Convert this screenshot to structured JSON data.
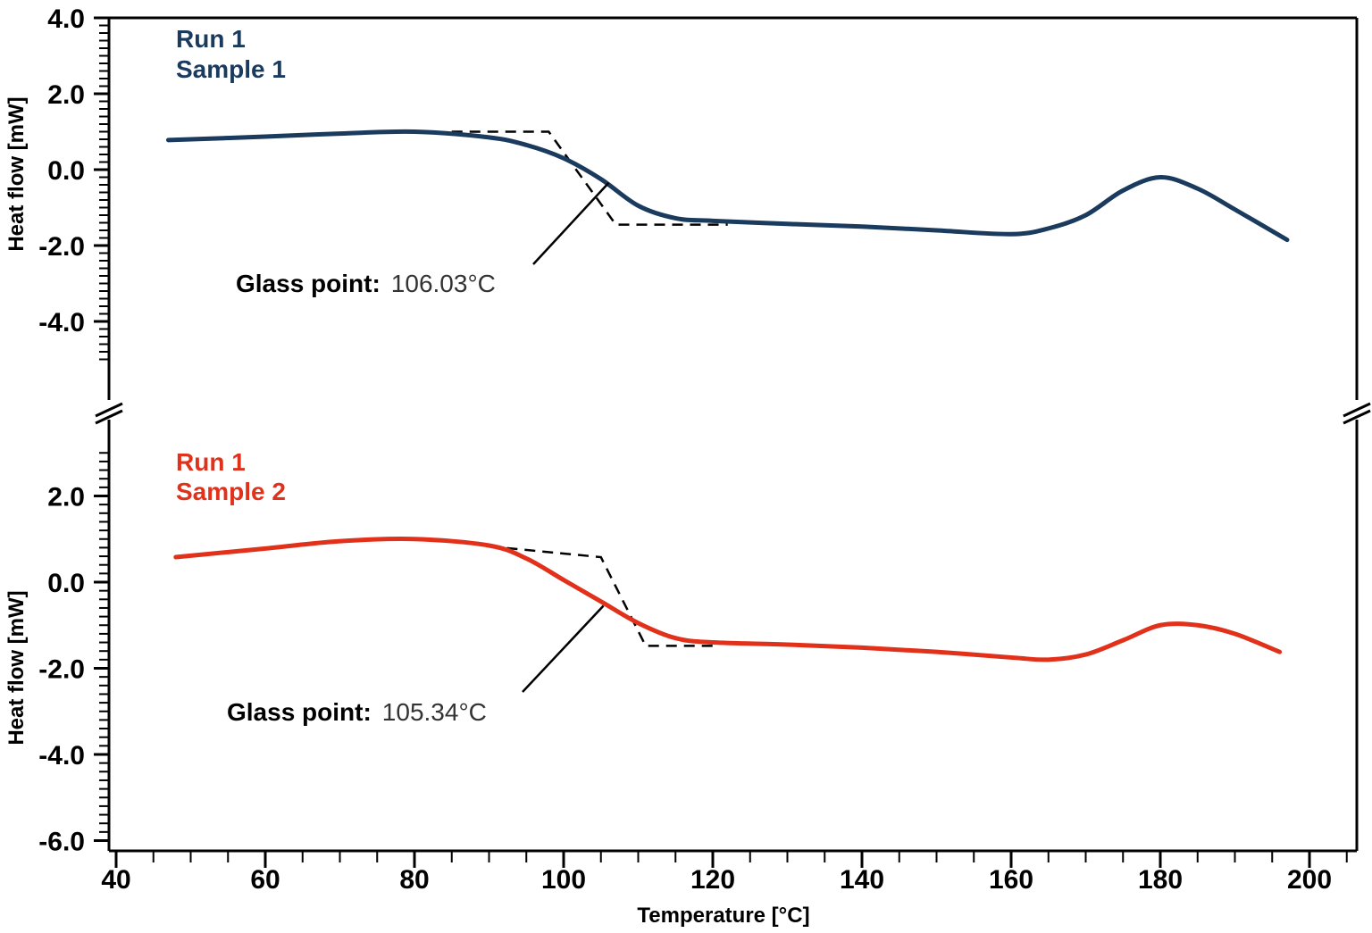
{
  "chart_data": [
    {
      "type": "line",
      "panel": "top",
      "xlabel": "Temperature [°C]",
      "ylabel": "Heat flow [mW]",
      "xlim": [
        40,
        200
      ],
      "ylim": [
        -5.0,
        4.0
      ],
      "yticks": [
        4.0,
        2.0,
        0.0,
        -2.0,
        -4.0
      ],
      "ytick_labels": [
        "4.0",
        "2.0",
        "0.0",
        "-2.0",
        "-4.0"
      ],
      "legend": [
        "Run 1",
        "Sample 1"
      ],
      "color": "#1a3a5e",
      "series": [
        {
          "x": [
            47,
            60,
            70,
            80,
            90,
            95,
            100,
            105,
            110,
            115,
            120,
            130,
            140,
            150,
            160,
            165,
            170,
            175,
            180,
            185,
            190,
            197
          ],
          "y": [
            0.78,
            0.87,
            0.95,
            1.0,
            0.85,
            0.65,
            0.3,
            -0.25,
            -0.95,
            -1.28,
            -1.35,
            -1.43,
            -1.5,
            -1.6,
            -1.7,
            -1.55,
            -1.2,
            -0.55,
            -0.2,
            -0.5,
            -1.05,
            -1.85
          ]
        }
      ],
      "tangent_lines": {
        "x": [
          85,
          98,
          107,
          122
        ],
        "y": [
          1.0,
          1.0,
          -1.45,
          -1.45
        ]
      },
      "annotation": {
        "label": "Glass point:",
        "value": "106.03°C",
        "x": 106.03,
        "y": -0.35
      }
    },
    {
      "type": "line",
      "panel": "bottom",
      "xlabel": "Temperature [°C]",
      "ylabel": "Heat flow [mW]",
      "xlim": [
        40,
        200
      ],
      "ylim": [
        -6.0,
        3.0
      ],
      "yticks": [
        2.0,
        0.0,
        -2.0,
        -4.0,
        -6.0
      ],
      "ytick_labels": [
        "2.0",
        "0.0",
        "-2.0",
        "-4.0",
        "-6.0"
      ],
      "legend": [
        "Run 1",
        "Sample 2"
      ],
      "color": "#e1311a",
      "series": [
        {
          "x": [
            48,
            60,
            70,
            80,
            90,
            95,
            100,
            105,
            110,
            115,
            120,
            130,
            140,
            150,
            160,
            165,
            170,
            175,
            180,
            185,
            190,
            196
          ],
          "y": [
            0.58,
            0.78,
            0.95,
            1.0,
            0.85,
            0.55,
            0.05,
            -0.45,
            -0.95,
            -1.3,
            -1.4,
            -1.45,
            -1.52,
            -1.62,
            -1.75,
            -1.8,
            -1.68,
            -1.35,
            -1.0,
            -1.0,
            -1.2,
            -1.62
          ]
        }
      ],
      "tangent_lines": {
        "x": [
          90,
          105,
          111,
          120
        ],
        "y": [
          0.83,
          0.58,
          -1.48,
          -1.48
        ]
      },
      "annotation": {
        "label": "Glass point:",
        "value": "105.34°C",
        "x": 105.34,
        "y": -0.55
      }
    }
  ],
  "x_axis": {
    "ticks": [
      40,
      60,
      80,
      100,
      120,
      140,
      160,
      180,
      200
    ],
    "tick_labels": [
      "40",
      "60",
      "80",
      "100",
      "120",
      "140",
      "160",
      "180",
      "200"
    ],
    "label": "Temperature [°C]"
  },
  "colors": {
    "axis": "#000000",
    "tangent": "#000000",
    "background": "#ffffff"
  }
}
